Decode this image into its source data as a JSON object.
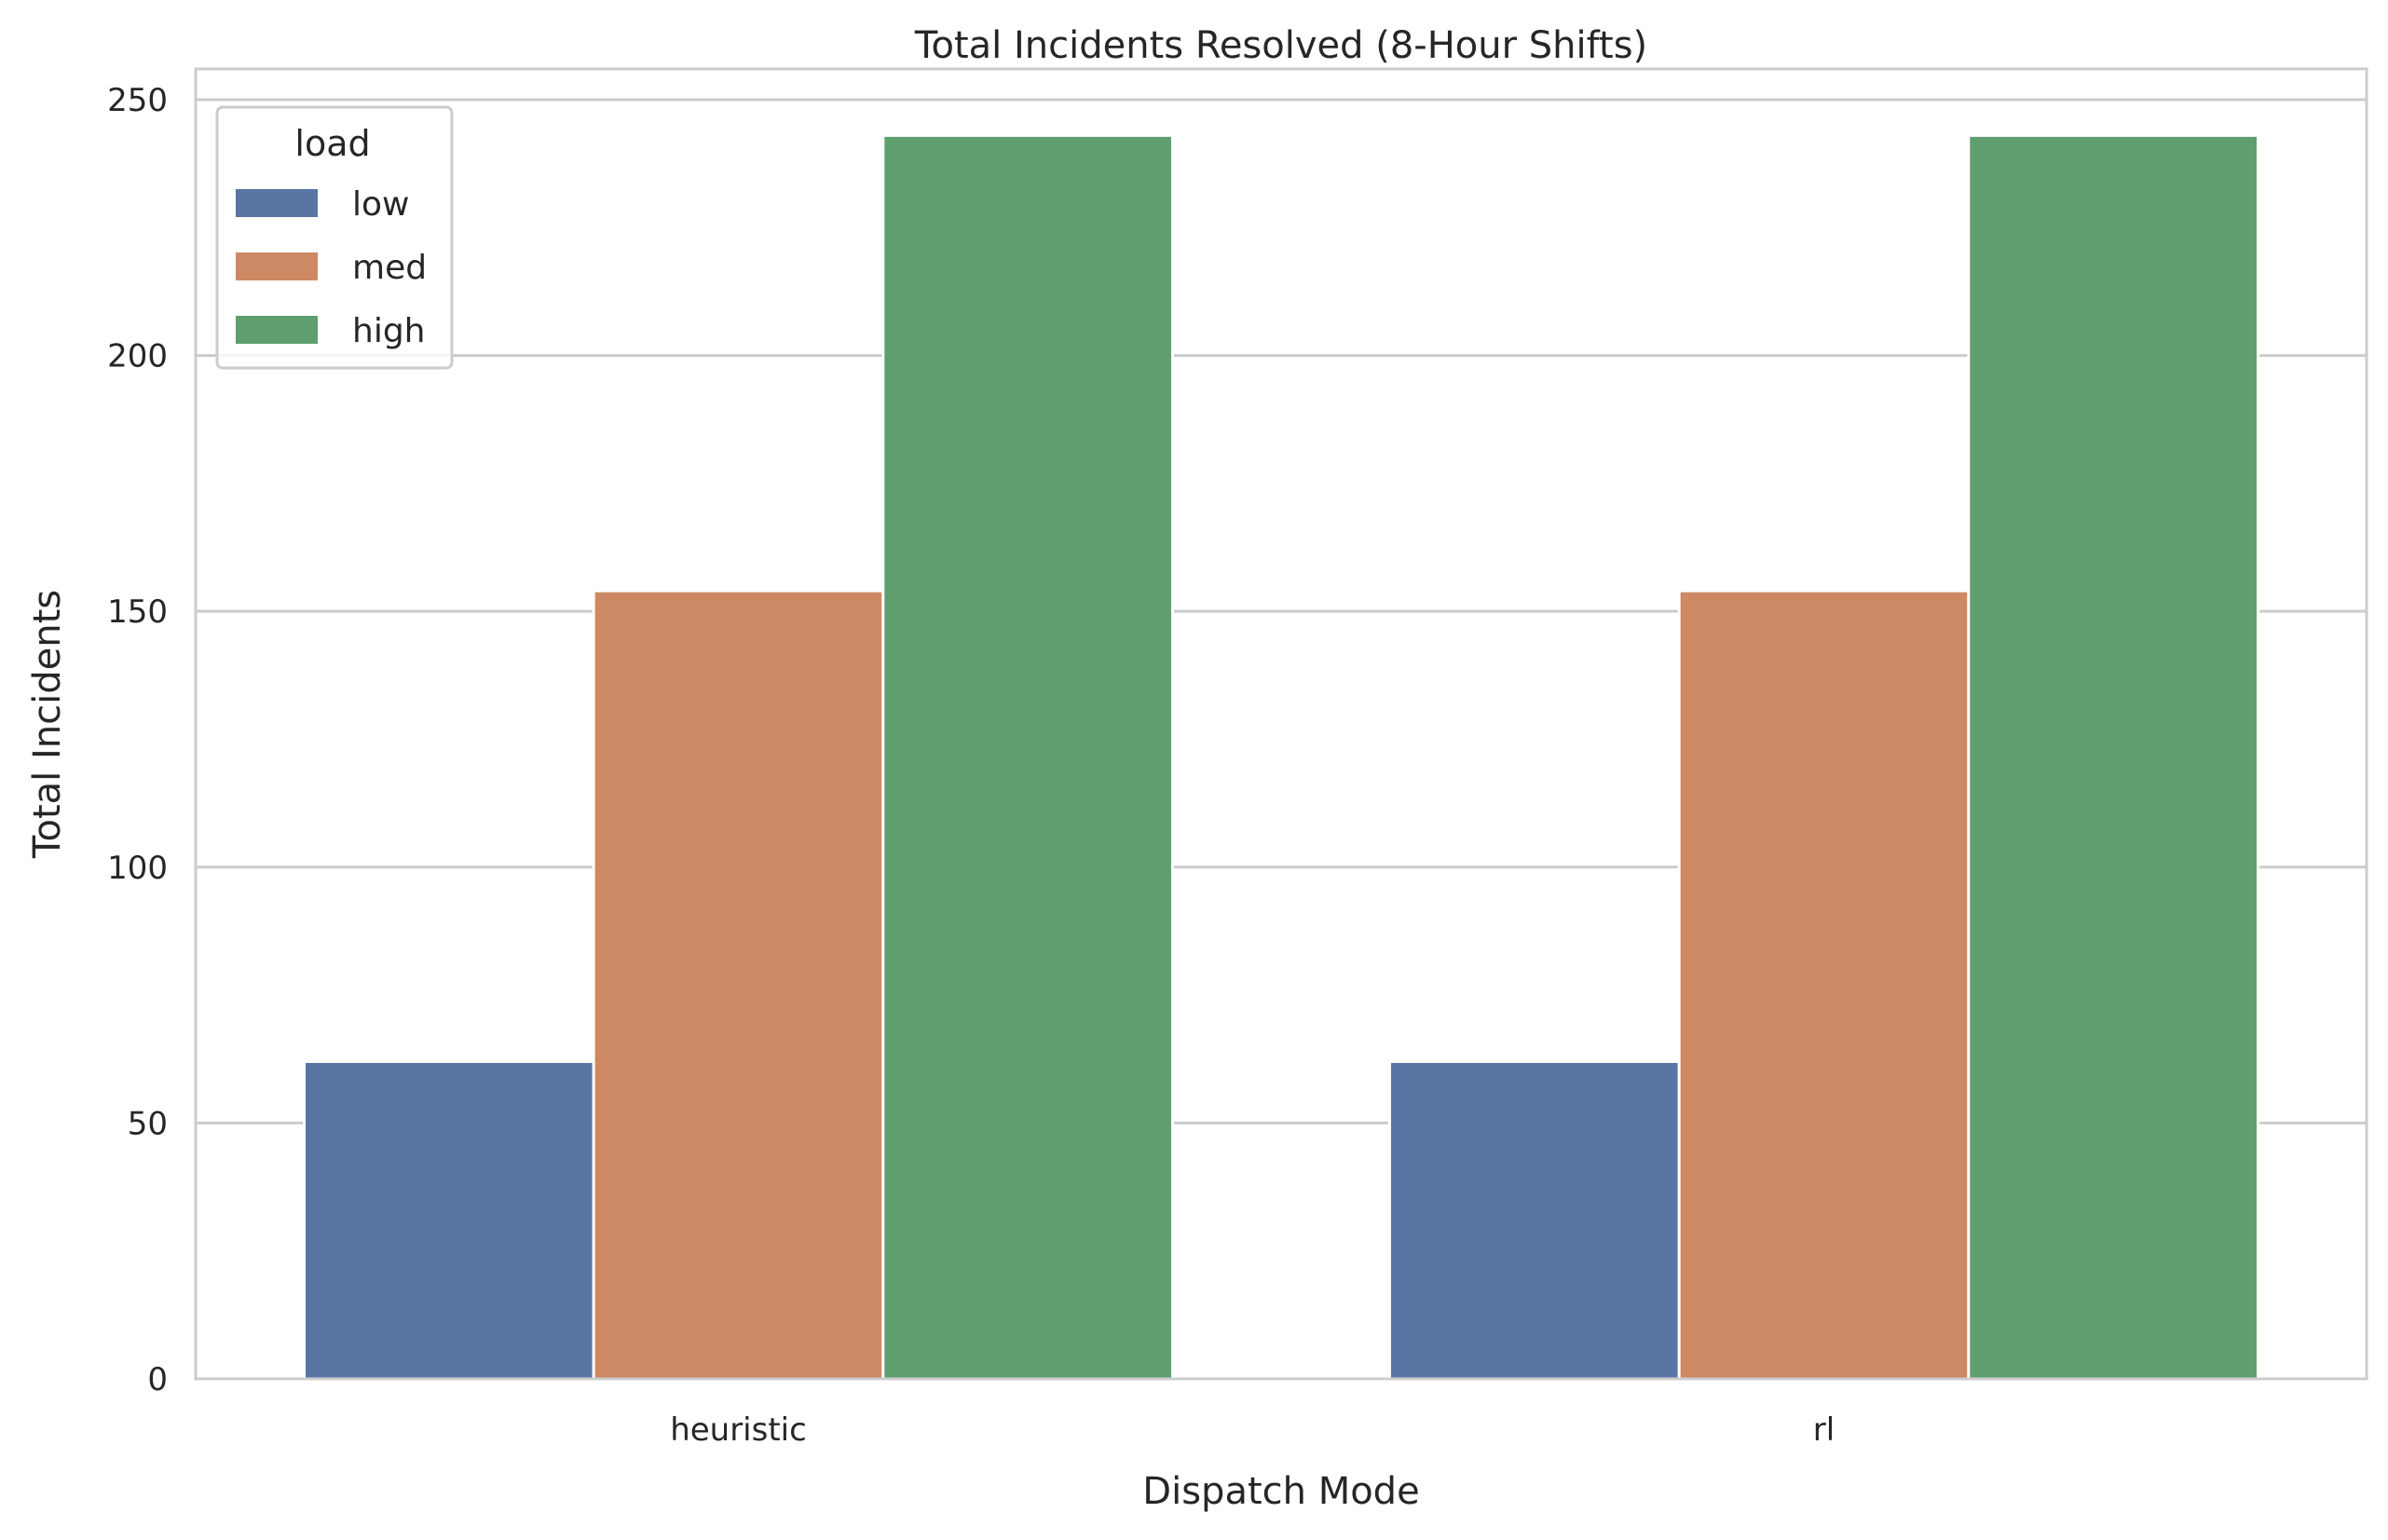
{
  "chart_data": {
    "type": "bar",
    "title": "Total Incidents Resolved (8-Hour Shifts)",
    "xlabel": "Dispatch Mode",
    "ylabel": "Total Incidents",
    "categories": [
      "heuristic",
      "rl"
    ],
    "series": [
      {
        "name": "low",
        "values": [
          62,
          62
        ],
        "color": "#5875a4"
      },
      {
        "name": "med",
        "values": [
          154,
          154
        ],
        "color": "#cc8963"
      },
      {
        "name": "high",
        "values": [
          243,
          243
        ],
        "color": "#5f9e6e"
      }
    ],
    "ylim": [
      0,
      256
    ],
    "yticks": [
      0,
      50,
      100,
      150,
      200,
      250
    ],
    "grid": true,
    "legend": {
      "title": "load",
      "placement": "top-left"
    },
    "colors": {
      "grid": "#cccccc",
      "spine": "#cccccc",
      "text": "#262626"
    }
  }
}
